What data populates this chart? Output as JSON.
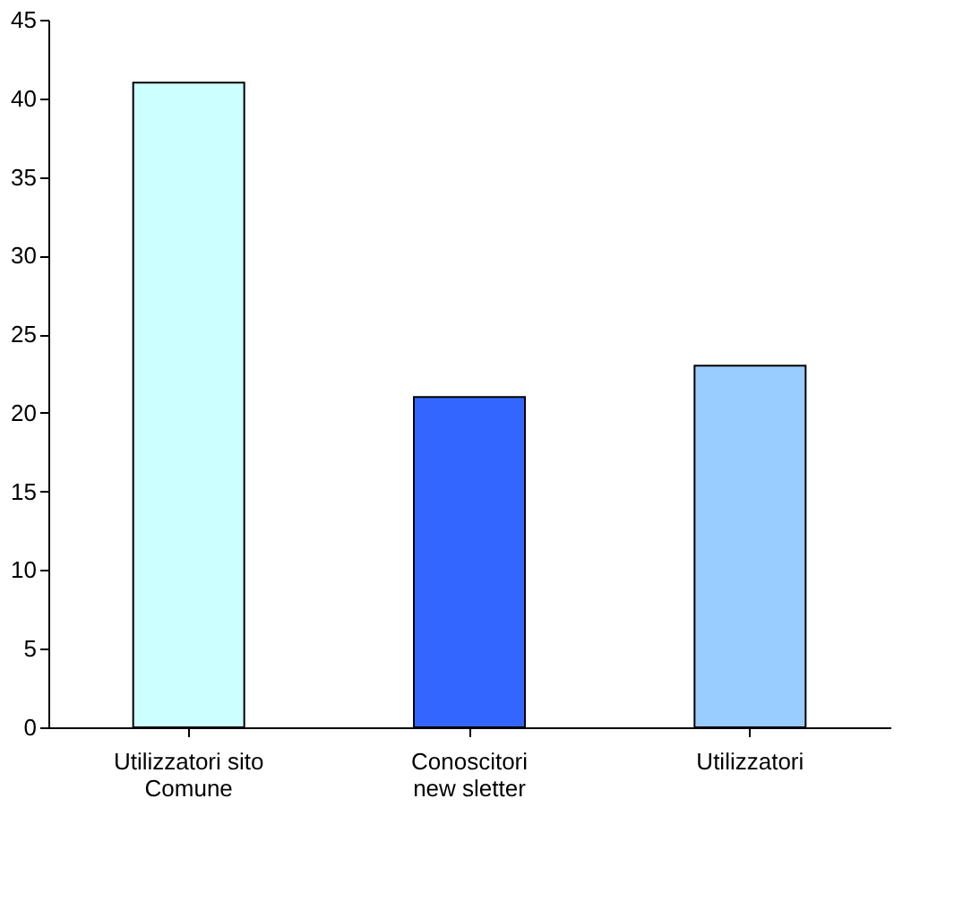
{
  "chart_data": {
    "type": "bar",
    "categories": [
      "Utilizzatori sito\nComune",
      "Conoscitori\nnew sletter",
      "Utilizzatori"
    ],
    "values": [
      41,
      21,
      23
    ],
    "colors": [
      "#ccffff",
      "#3366ff",
      "#99ccff"
    ],
    "ylim": [
      0,
      45
    ],
    "yticks": [
      0,
      5,
      10,
      15,
      20,
      25,
      30,
      35,
      40,
      45
    ],
    "grid": false,
    "legend": false
  }
}
